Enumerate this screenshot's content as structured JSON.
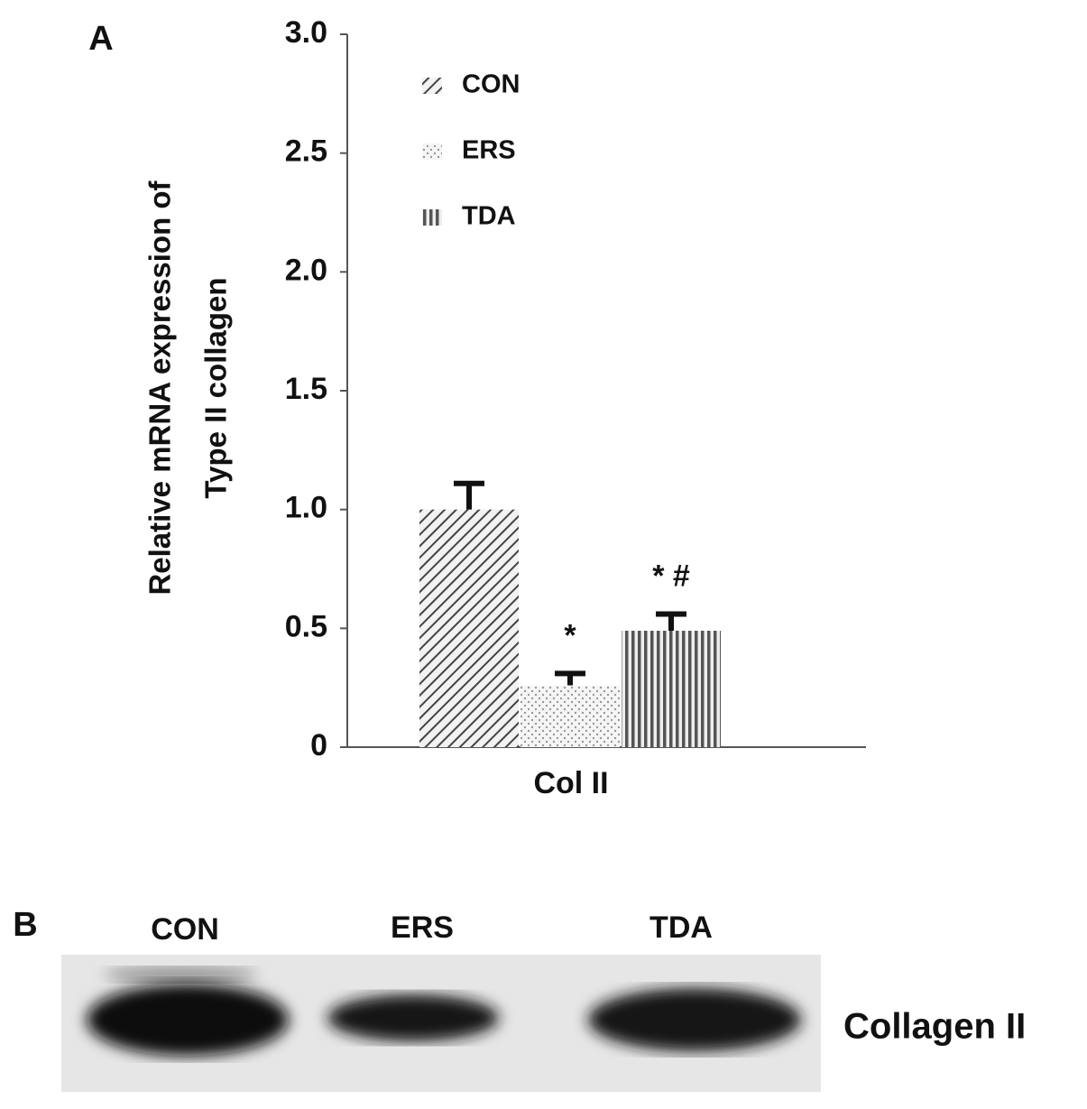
{
  "chart_data": {
    "type": "bar",
    "panel": "A",
    "ylabel": [
      "Relative mRNA expression of",
      "Type II collagen"
    ],
    "categories": [
      "Col II"
    ],
    "series": [
      {
        "name": "CON",
        "pattern": "diagonal",
        "values": [
          1.0
        ],
        "errors": [
          0.11
        ]
      },
      {
        "name": "ERS",
        "pattern": "dots",
        "values": [
          0.26
        ],
        "errors": [
          0.05
        ],
        "annotation": "*"
      },
      {
        "name": "TDA",
        "pattern": "vertical",
        "values": [
          0.49
        ],
        "errors": [
          0.07
        ],
        "annotation": "* #"
      }
    ],
    "ylim": [
      0,
      3
    ],
    "yticks": [
      0,
      0.5,
      {
        "value": 1,
        "label": "1.0"
      },
      1.5,
      {
        "value": 2,
        "label": "2.0"
      },
      2.5,
      {
        "value": 3,
        "label": "3.0"
      }
    ],
    "grid": false,
    "legend": "top-left"
  },
  "blot": {
    "panel": "B",
    "lanes": [
      "CON",
      "ERS",
      "TDA"
    ],
    "protein": "Collagen II"
  }
}
